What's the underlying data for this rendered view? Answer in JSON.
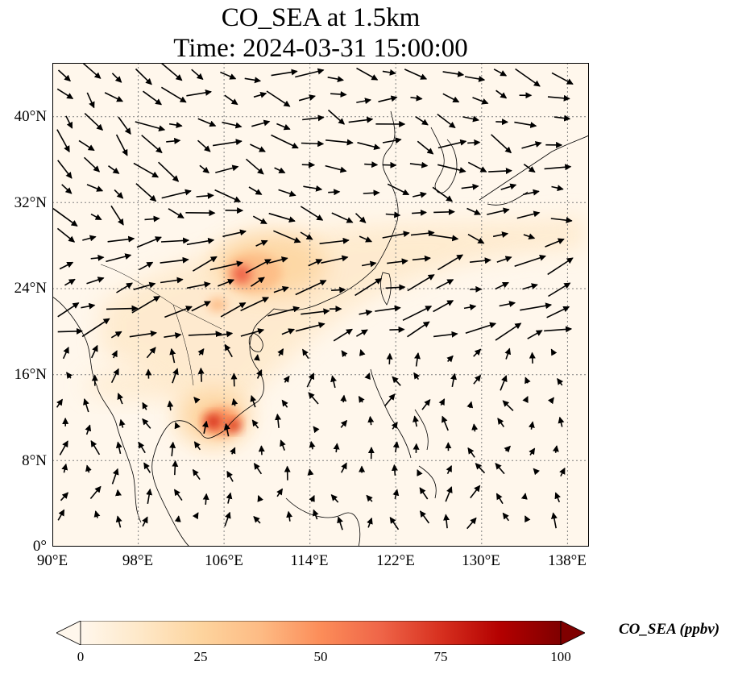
{
  "title_line1": "CO_SEA at 1.5km",
  "title_line2": "Time: 2024-03-31 15:00:00",
  "map": {
    "lon_range": [
      90,
      140
    ],
    "lat_range": [
      0,
      45
    ],
    "lon_ticks": [
      "90°E",
      "98°E",
      "106°E",
      "114°E",
      "122°E",
      "130°E",
      "138°E"
    ],
    "lat_ticks": [
      "0°",
      "8°N",
      "16°N",
      "24°N",
      "32°N",
      "40°N"
    ],
    "gridlines": true
  },
  "colorbar": {
    "label": "CO_SEA (ppbv)",
    "ticks": [
      "0",
      "25",
      "50",
      "75",
      "100"
    ],
    "range": [
      0,
      100
    ],
    "colormap": "OrRd",
    "extend": "both",
    "colors": [
      "#fff7ec",
      "#fee8c8",
      "#fdd49e",
      "#fdbb84",
      "#fc8d59",
      "#ef6548",
      "#d7301f",
      "#b30000",
      "#7f0000"
    ]
  },
  "colors": {
    "coastline": "#000000",
    "gridline": "#808080",
    "arrow": "#000000"
  }
}
